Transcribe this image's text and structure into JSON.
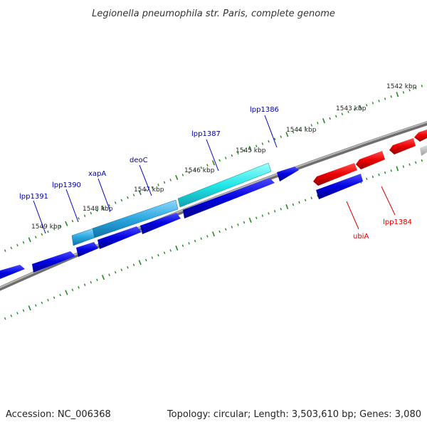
{
  "title": "Legionella pneumophila str. Paris, complete genome",
  "footer": {
    "accession": "Accession: NC_006368",
    "summary": "Topology: circular; Length: 3,503,610 bp; Genes: 3,080"
  },
  "ticks": [
    "1542 kbp",
    "1543 kbp",
    "1544 kbp",
    "1545 kbp",
    "1546 kbp",
    "1547 kbp",
    "1548 kbp",
    "1549 kbp"
  ],
  "genes_forward": [
    "lpp1391",
    "lpp1390",
    "xapA",
    "deoC",
    "lpp1387",
    "lpp1386"
  ],
  "genes_reverse": [
    "ubiA",
    "lpp1384"
  ],
  "colors": {
    "forward_gene": "#0000dd",
    "reverse_gene": "#ee0000",
    "highlight_cyan": "#22e8e8",
    "highlight_sky": "#2aa8e0",
    "backbone": "#808080",
    "tick": "#228822",
    "fwd_label": "#0000aa",
    "rev_label": "#dd0000"
  }
}
